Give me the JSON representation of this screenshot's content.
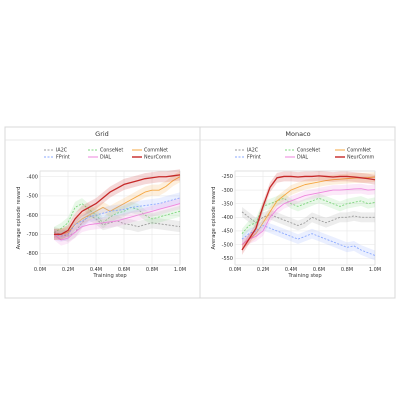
{
  "chart_data": [
    {
      "type": "line",
      "title": "Grid",
      "xlabel": "Training step",
      "ylabel": "Average episode reward",
      "xlim": [
        0,
        1000000
      ],
      "ylim": [
        -860,
        -370
      ],
      "x_ticks": [
        0,
        200000,
        400000,
        600000,
        800000,
        1000000
      ],
      "x_tick_labels": [
        "0.0M",
        "0.2M",
        "0.4M",
        "0.6M",
        "0.8M",
        "1.0M"
      ],
      "y_ticks": [
        -400,
        -500,
        -600,
        -700,
        -800
      ],
      "y_tick_labels": [
        "-400",
        "-500",
        "-600",
        "-700",
        "-800"
      ],
      "grid": true,
      "legend": "top",
      "x": [
        100000,
        150000,
        200000,
        250000,
        300000,
        350000,
        400000,
        450000,
        500000,
        550000,
        600000,
        650000,
        700000,
        750000,
        800000,
        850000,
        900000,
        950000,
        1000000
      ],
      "series": [
        {
          "name": "IA2C",
          "color": "#9a9a9a",
          "dash": "2,1.5",
          "values": [
            -690,
            -700,
            -710,
            -690,
            -640,
            -600,
            -620,
            -650,
            -640,
            -630,
            -645,
            -650,
            -660,
            -650,
            -640,
            -645,
            -650,
            -655,
            -660
          ]
        },
        {
          "name": "ConseNet",
          "color": "#7fd67f",
          "dash": "2,1.5",
          "values": [
            -690,
            -670,
            -640,
            -560,
            -540,
            -570,
            -600,
            -640,
            -610,
            -590,
            -580,
            -560,
            -570,
            -600,
            -620,
            -610,
            -600,
            -590,
            -580
          ]
        },
        {
          "name": "CommNet",
          "color": "#f5a742",
          "dash": "",
          "values": [
            -700,
            -700,
            -690,
            -650,
            -620,
            -600,
            -580,
            -560,
            -580,
            -560,
            -540,
            -520,
            -500,
            -480,
            -470,
            -470,
            -450,
            -420,
            -400
          ]
        },
        {
          "name": "FPrint",
          "color": "#8aa8ff",
          "dash": "2,1.5",
          "values": [
            -700,
            -710,
            -700,
            -650,
            -630,
            -610,
            -600,
            -590,
            -580,
            -575,
            -570,
            -560,
            -555,
            -550,
            -545,
            -540,
            -530,
            -520,
            -510
          ]
        },
        {
          "name": "DIAL",
          "color": "#ee86dd",
          "dash": "",
          "values": [
            -700,
            -730,
            -720,
            -690,
            -660,
            -650,
            -645,
            -640,
            -635,
            -630,
            -620,
            -610,
            -600,
            -590,
            -580,
            -570,
            -560,
            -550,
            -540
          ]
        },
        {
          "name": "NeurComm",
          "color": "#c62828",
          "dash": "",
          "values": [
            -700,
            -700,
            -680,
            -620,
            -580,
            -560,
            -540,
            -510,
            -480,
            -460,
            -440,
            -430,
            -420,
            -410,
            -405,
            -400,
            -400,
            -395,
            -390
          ]
        }
      ]
    },
    {
      "type": "line",
      "title": "Monaco",
      "xlabel": "Training step",
      "ylabel": "Average episode reward",
      "xlim": [
        0,
        1000000
      ],
      "ylim": [
        -575,
        -230
      ],
      "x_ticks": [
        0,
        200000,
        400000,
        600000,
        800000,
        1000000
      ],
      "x_tick_labels": [
        "0.0M",
        "0.2M",
        "0.4M",
        "0.6M",
        "0.8M",
        "1.0M"
      ],
      "y_ticks": [
        -250,
        -300,
        -350,
        -400,
        -450,
        -500,
        -550
      ],
      "y_tick_labels": [
        "-250",
        "-300",
        "-350",
        "-400",
        "-450",
        "-500",
        "-550"
      ],
      "grid": true,
      "legend": "top",
      "x": [
        50000,
        100000,
        150000,
        200000,
        250000,
        300000,
        350000,
        400000,
        450000,
        500000,
        550000,
        600000,
        650000,
        700000,
        750000,
        800000,
        850000,
        900000,
        950000,
        1000000
      ],
      "series": [
        {
          "name": "IA2C",
          "color": "#9a9a9a",
          "dash": "2,1.5",
          "values": [
            -380,
            -400,
            -420,
            -400,
            -390,
            -400,
            -410,
            -420,
            -430,
            -420,
            -400,
            -410,
            -420,
            -410,
            -400,
            -400,
            -395,
            -400,
            -400,
            -400
          ]
        },
        {
          "name": "ConseNet",
          "color": "#7fd67f",
          "dash": "2,1.5",
          "values": [
            -460,
            -430,
            -420,
            -360,
            -350,
            -340,
            -330,
            -350,
            -360,
            -350,
            -340,
            -330,
            -340,
            -350,
            -360,
            -350,
            -345,
            -340,
            -350,
            -345
          ]
        },
        {
          "name": "CommNet",
          "color": "#f5a742",
          "dash": "",
          "values": [
            -500,
            -480,
            -460,
            -420,
            -380,
            -340,
            -320,
            -300,
            -290,
            -280,
            -275,
            -270,
            -265,
            -262,
            -260,
            -258,
            -256,
            -255,
            -254,
            -252
          ]
        },
        {
          "name": "FPrint",
          "color": "#8aa8ff",
          "dash": "2,1.5",
          "values": [
            -480,
            -460,
            -450,
            -430,
            -440,
            -450,
            -460,
            -470,
            -480,
            -470,
            -460,
            -470,
            -480,
            -490,
            -500,
            -510,
            -505,
            -520,
            -530,
            -540
          ]
        },
        {
          "name": "DIAL",
          "color": "#ee86dd",
          "dash": "",
          "values": [
            -500,
            -480,
            -470,
            -450,
            -400,
            -370,
            -350,
            -340,
            -330,
            -320,
            -315,
            -310,
            -305,
            -300,
            -300,
            -298,
            -296,
            -295,
            -300,
            -298
          ]
        },
        {
          "name": "NeurComm",
          "color": "#c62828",
          "dash": "",
          "values": [
            -520,
            -480,
            -440,
            -360,
            -290,
            -255,
            -250,
            -250,
            -252,
            -250,
            -250,
            -248,
            -250,
            -252,
            -250,
            -250,
            -252,
            -255,
            -258,
            -262
          ]
        }
      ]
    }
  ]
}
